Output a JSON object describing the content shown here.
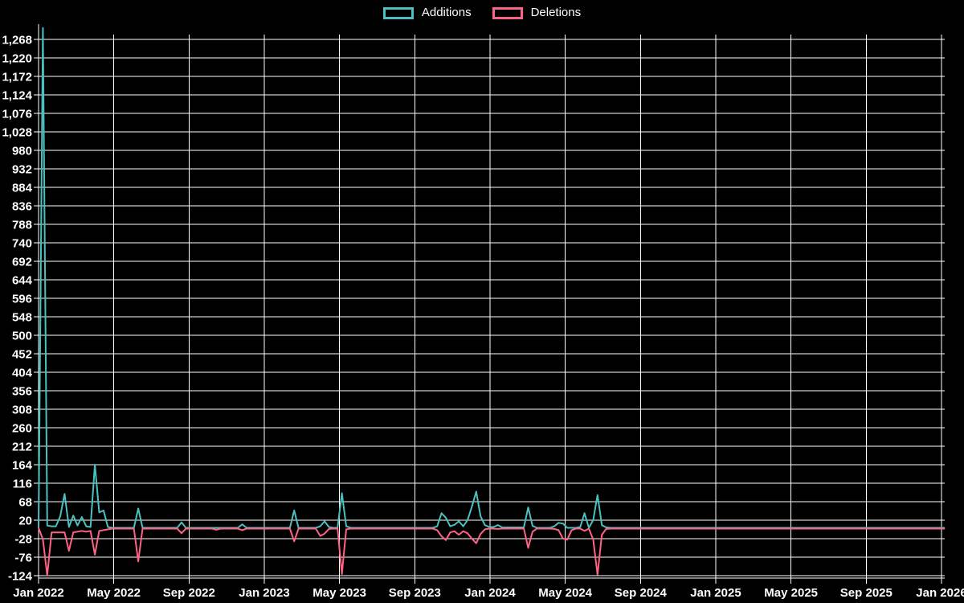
{
  "legend": {
    "additions_label": "Additions",
    "deletions_label": "Deletions"
  },
  "colors": {
    "background": "#000000",
    "grid": "#ffffff",
    "text": "#ffffff",
    "additions": "#4bc0c0",
    "deletions": "#ff6384"
  },
  "chart_data": {
    "type": "line",
    "title": "",
    "legend_entries": [
      "Additions",
      "Deletions"
    ],
    "x_unit": "weeks since Jan 2022",
    "x_tick_labels": [
      "Jan 2022",
      "May 2022",
      "Sep 2022",
      "Jan 2023",
      "May 2023",
      "Sep 2023",
      "Jan 2024",
      "May 2024",
      "Sep 2024",
      "Jan 2025",
      "May 2025",
      "Sep 2025",
      "Jan 2026"
    ],
    "y_axis": {
      "min": -124,
      "max": 1268,
      "step": 48,
      "grid": true
    },
    "y_tick_labels": [
      "1,268",
      "1,220",
      "1,172",
      "1,124",
      "1,076",
      "1,028",
      "980",
      "932",
      "884",
      "836",
      "788",
      "740",
      "692",
      "644",
      "596",
      "548",
      "500",
      "452",
      "404",
      "356",
      "308",
      "260",
      "212",
      "164",
      "116",
      "68",
      "20",
      "-28",
      "-76",
      "-124"
    ],
    "legend_position": "top",
    "series": [
      {
        "name": "Additions",
        "color": "#4bc0c0",
        "points": [
          [
            0,
            0
          ],
          [
            1,
            1298
          ],
          [
            2,
            6
          ],
          [
            3,
            4
          ],
          [
            4,
            4
          ],
          [
            5,
            30
          ],
          [
            6,
            88
          ],
          [
            7,
            2
          ],
          [
            8,
            32
          ],
          [
            9,
            6
          ],
          [
            10,
            28
          ],
          [
            11,
            4
          ],
          [
            12,
            2
          ],
          [
            13,
            164
          ],
          [
            14,
            40
          ],
          [
            15,
            45
          ],
          [
            16,
            2
          ],
          [
            17,
            0
          ],
          [
            22,
            0
          ],
          [
            23,
            50
          ],
          [
            24,
            0
          ],
          [
            32,
            0
          ],
          [
            33,
            14
          ],
          [
            34,
            0
          ],
          [
            40,
            0
          ],
          [
            46,
            0
          ],
          [
            47,
            9
          ],
          [
            48,
            0
          ],
          [
            58,
            0
          ],
          [
            59,
            45
          ],
          [
            60,
            0
          ],
          [
            64,
            0
          ],
          [
            65,
            4
          ],
          [
            66,
            17
          ],
          [
            67,
            2
          ],
          [
            68,
            0
          ],
          [
            69,
            0
          ],
          [
            70,
            90
          ],
          [
            71,
            4
          ],
          [
            72,
            0
          ],
          [
            91,
            0
          ],
          [
            92,
            4
          ],
          [
            93,
            38
          ],
          [
            94,
            26
          ],
          [
            95,
            4
          ],
          [
            96,
            8
          ],
          [
            97,
            17
          ],
          [
            98,
            4
          ],
          [
            99,
            20
          ],
          [
            100,
            55
          ],
          [
            101,
            94
          ],
          [
            102,
            30
          ],
          [
            103,
            7
          ],
          [
            104,
            2
          ],
          [
            105,
            2
          ],
          [
            106,
            7
          ],
          [
            107,
            1
          ],
          [
            112,
            1
          ],
          [
            113,
            53
          ],
          [
            114,
            5
          ],
          [
            115,
            0
          ],
          [
            118,
            0
          ],
          [
            119,
            4
          ],
          [
            120,
            13
          ],
          [
            121,
            11
          ],
          [
            122,
            0
          ],
          [
            124,
            0
          ],
          [
            125,
            2
          ],
          [
            126,
            38
          ],
          [
            127,
            0
          ],
          [
            128,
            20
          ],
          [
            129,
            85
          ],
          [
            130,
            7
          ],
          [
            131,
            1
          ],
          [
            132,
            0
          ],
          [
            209,
            0
          ]
        ]
      },
      {
        "name": "Deletions",
        "color": "#ff6384",
        "points": [
          [
            0,
            0
          ],
          [
            1,
            -30
          ],
          [
            2,
            -124
          ],
          [
            3,
            -12
          ],
          [
            4,
            -12
          ],
          [
            5,
            -12
          ],
          [
            6,
            -12
          ],
          [
            7,
            -60
          ],
          [
            8,
            -12
          ],
          [
            9,
            -10
          ],
          [
            10,
            -8
          ],
          [
            11,
            -10
          ],
          [
            12,
            -8
          ],
          [
            13,
            -70
          ],
          [
            14,
            -8
          ],
          [
            15,
            -6
          ],
          [
            16,
            -4
          ],
          [
            17,
            -2
          ],
          [
            22,
            -2
          ],
          [
            23,
            -87
          ],
          [
            24,
            -2
          ],
          [
            32,
            -2
          ],
          [
            33,
            -14
          ],
          [
            34,
            -2
          ],
          [
            40,
            -2
          ],
          [
            41,
            -5
          ],
          [
            42,
            -2
          ],
          [
            46,
            -2
          ],
          [
            47,
            -6
          ],
          [
            48,
            -2
          ],
          [
            58,
            -2
          ],
          [
            59,
            -35
          ],
          [
            60,
            -2
          ],
          [
            64,
            -2
          ],
          [
            65,
            -21
          ],
          [
            66,
            -15
          ],
          [
            67,
            -3
          ],
          [
            68,
            -2
          ],
          [
            69,
            -2
          ],
          [
            70,
            -120
          ],
          [
            71,
            -4
          ],
          [
            72,
            -2
          ],
          [
            91,
            -2
          ],
          [
            92,
            -6
          ],
          [
            93,
            -22
          ],
          [
            94,
            -32
          ],
          [
            95,
            -12
          ],
          [
            96,
            -9
          ],
          [
            97,
            -18
          ],
          [
            98,
            -9
          ],
          [
            99,
            -14
          ],
          [
            100,
            -28
          ],
          [
            101,
            -40
          ],
          [
            102,
            -16
          ],
          [
            103,
            -4
          ],
          [
            104,
            -2
          ],
          [
            105,
            -2
          ],
          [
            106,
            -3
          ],
          [
            107,
            -2
          ],
          [
            112,
            -2
          ],
          [
            113,
            -52
          ],
          [
            114,
            -10
          ],
          [
            115,
            -2
          ],
          [
            118,
            -2
          ],
          [
            119,
            -3
          ],
          [
            120,
            -6
          ],
          [
            121,
            -28
          ],
          [
            122,
            -31
          ],
          [
            123,
            -6
          ],
          [
            124,
            -2
          ],
          [
            125,
            -2
          ],
          [
            126,
            -8
          ],
          [
            127,
            -2
          ],
          [
            128,
            -30
          ],
          [
            129,
            -122
          ],
          [
            130,
            -18
          ],
          [
            131,
            -3
          ],
          [
            132,
            -2
          ],
          [
            209,
            -2
          ]
        ]
      }
    ]
  }
}
